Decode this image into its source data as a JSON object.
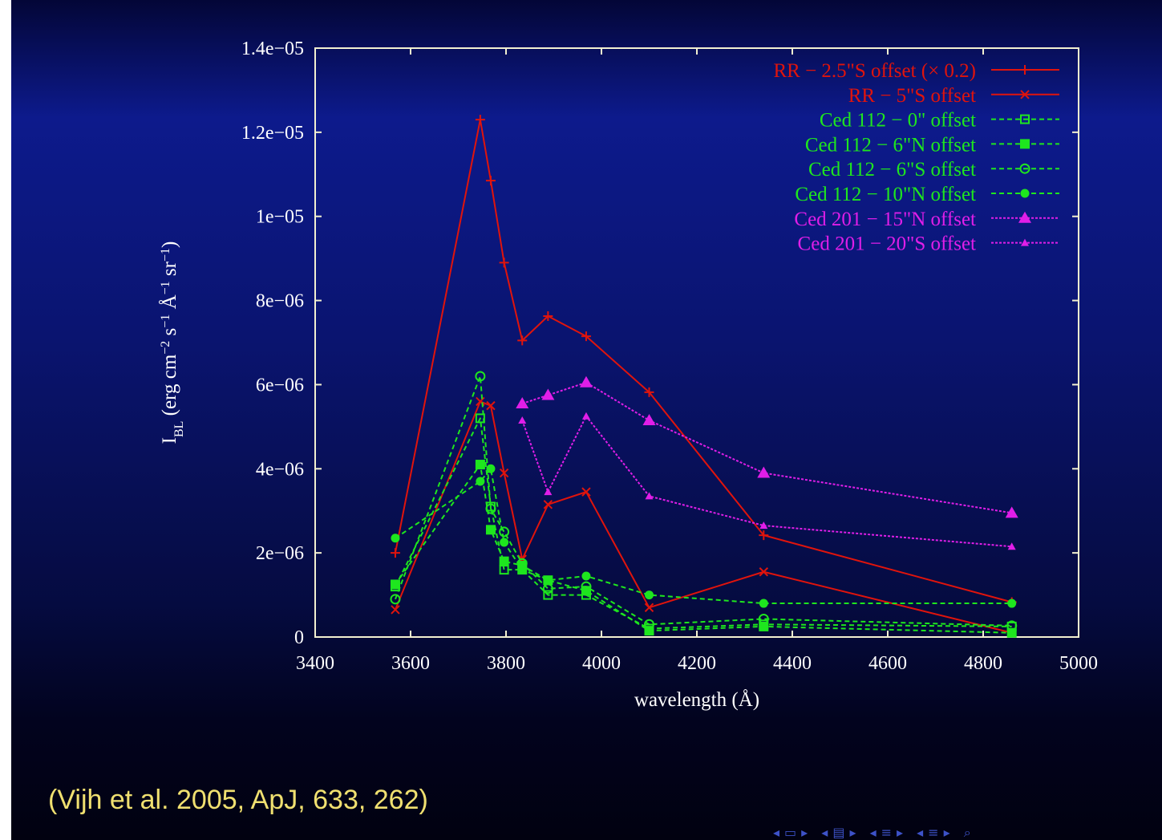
{
  "citation": "(Vijh et al. 2005, ApJ, 633, 262)",
  "nav_icons": [
    "arrow-left-icon",
    "arrow-right-icon",
    "section-icon",
    "arrow-left-icon",
    "arrow-right-icon",
    "subsection-icon",
    "arrow-left-icon",
    "arrow-right-icon",
    "search-icon"
  ],
  "colors": {
    "frame": "#f2f0d0",
    "tick_labels": "#ffffff",
    "rr": "#e0140c",
    "ced112": "#1ee61e",
    "ced201": "#e01ee8"
  },
  "chart_data": {
    "type": "line",
    "xlabel": "wavelength (Å)",
    "ylabel": "I_BL (erg cm^-2 s^-1 Å^-1 sr^-1)",
    "ylabel_parts": {
      "main": "I",
      "sub": "BL",
      "open": " (erg cm",
      "e1": "−2",
      "s": " s",
      "e2": "−1",
      "a": " Å",
      "e3": "−1",
      "sr": " sr",
      "e4": "−1",
      "close": ")"
    },
    "xlim": [
      3400,
      5000
    ],
    "ylim": [
      0,
      1.4e-05
    ],
    "x_ticks": [
      "3400",
      "3600",
      "3800",
      "4000",
      "4200",
      "4400",
      "4600",
      "4800",
      "5000"
    ],
    "y_ticks": [
      "0",
      "2e−06",
      "4e−06",
      "6e−06",
      "8e−06",
      "1e−05",
      "1.2e−05",
      "1.4e−05"
    ],
    "legend_position": "top-right",
    "grid": false,
    "series": [
      {
        "name": "RR − 2.5\"S offset (× 0.2)",
        "color": "#e0140c",
        "dash": "solid",
        "marker": "plus",
        "x": [
          3568,
          3746,
          3768,
          3796,
          3834,
          3888,
          3968,
          4100,
          4340,
          4860
        ],
        "y": [
          2e-06,
          1.23e-05,
          1.085e-05,
          8.9e-06,
          7.05e-06,
          7.63e-06,
          7.15e-06,
          5.82e-06,
          2.42e-06,
          8.3e-07
        ]
      },
      {
        "name": "RR − 5\"S offset",
        "color": "#e0140c",
        "dash": "solid",
        "marker": "cross",
        "x": [
          3568,
          3746,
          3768,
          3796,
          3834,
          3888,
          3968,
          4100,
          4340,
          4860
        ],
        "y": [
          6.5e-07,
          5.6e-06,
          5.5e-06,
          3.9e-06,
          1.85e-06,
          3.15e-06,
          3.45e-06,
          7e-07,
          1.55e-06,
          1e-07
        ]
      },
      {
        "name": "Ced 112 − 0\" offset",
        "color": "#1ee61e",
        "dash": "dashed",
        "marker": "open-square",
        "x": [
          3568,
          3746,
          3768,
          3796,
          3834,
          3888,
          3968,
          4100,
          4340,
          4860
        ],
        "y": [
          1.2e-06,
          5.2e-06,
          3.1e-06,
          1.6e-06,
          1.6e-06,
          1e-06,
          1e-06,
          2e-07,
          3e-07,
          2.5e-07
        ]
      },
      {
        "name": "Ced 112 − 6\"N offset",
        "color": "#1ee61e",
        "dash": "dashed",
        "marker": "filled-square",
        "x": [
          3568,
          3746,
          3768,
          3796,
          3834,
          3888,
          3968,
          4100,
          4340,
          4860
        ],
        "y": [
          1.25e-06,
          4.1e-06,
          2.55e-06,
          1.8e-06,
          1.7e-06,
          1.35e-06,
          1.1e-06,
          1.5e-07,
          2.5e-07,
          1e-07
        ]
      },
      {
        "name": "Ced 112 − 6\"S offset",
        "color": "#1ee61e",
        "dash": "dashed",
        "marker": "open-circle",
        "x": [
          3568,
          3746,
          3768,
          3796,
          3834,
          3888,
          3968,
          4100,
          4340,
          4860
        ],
        "y": [
          9e-07,
          6.2e-06,
          3.05e-06,
          2.5e-06,
          1.75e-06,
          1.15e-06,
          1.2e-06,
          3e-07,
          4.3e-07,
          2.7e-07
        ]
      },
      {
        "name": "Ced 112 − 10\"N offset",
        "color": "#1ee61e",
        "dash": "dashed",
        "marker": "filled-circle",
        "x": [
          3568,
          3746,
          3768,
          3796,
          3834,
          3888,
          3968,
          4100,
          4340,
          4860
        ],
        "y": [
          2.35e-06,
          3.7e-06,
          4e-06,
          2.25e-06,
          1.6e-06,
          1.35e-06,
          1.45e-06,
          1e-06,
          8e-07,
          8e-07
        ]
      },
      {
        "name": "Ced 201 − 15\"N offset",
        "color": "#e01ee8",
        "dash": "dotted",
        "marker": "filled-triangle",
        "x": [
          3834,
          3888,
          3968,
          4100,
          4340,
          4860
        ],
        "y": [
          5.55e-06,
          5.75e-06,
          6.05e-06,
          5.15e-06,
          3.9e-06,
          2.95e-06
        ]
      },
      {
        "name": "Ced 201 − 20\"S offset",
        "color": "#e01ee8",
        "dash": "dotted",
        "marker": "small-triangle",
        "x": [
          3834,
          3888,
          3968,
          4100,
          4340,
          4860
        ],
        "y": [
          5.15e-06,
          3.45e-06,
          5.25e-06,
          3.35e-06,
          2.65e-06,
          2.15e-06
        ]
      }
    ]
  }
}
